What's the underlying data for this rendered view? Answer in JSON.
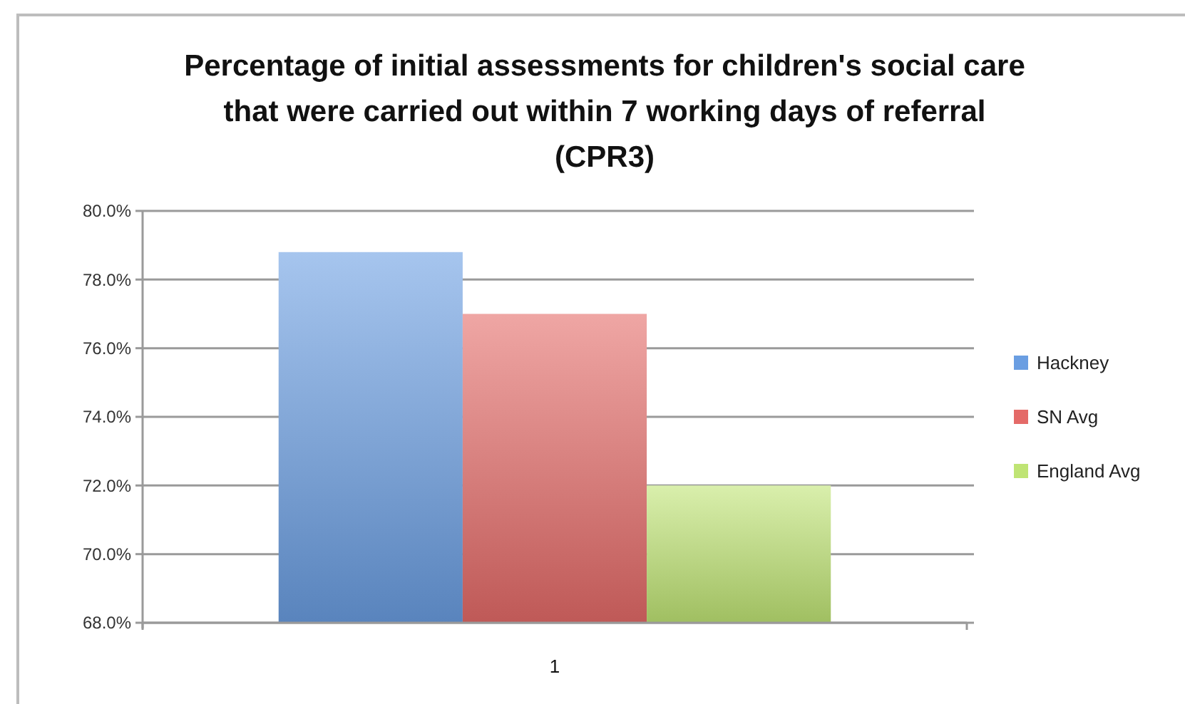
{
  "chart_data": {
    "type": "bar",
    "title": "Percentage of initial assessments for children's social care that were carried out within 7 working days of referral (CPR3)",
    "categories": [
      "1"
    ],
    "series": [
      {
        "name": "Hackney",
        "color": "#6a9ee2",
        "values": [
          78.8
        ]
      },
      {
        "name": "SN Avg",
        "color": "#e46a68",
        "values": [
          77.0
        ]
      },
      {
        "name": "England Avg",
        "color": "#bfe474",
        "values": [
          72.0
        ]
      }
    ],
    "ylim": [
      68,
      80
    ],
    "yticks": [
      {
        "value": 68,
        "label": "68.0%"
      },
      {
        "value": 70,
        "label": "70.0%"
      },
      {
        "value": 72,
        "label": "72.0%"
      },
      {
        "value": 74,
        "label": "74.0%"
      },
      {
        "value": 76,
        "label": "76.0%"
      },
      {
        "value": 78,
        "label": "78.0%"
      },
      {
        "value": 80,
        "label": "80.0%"
      }
    ],
    "grid": "y",
    "legend": "right"
  }
}
